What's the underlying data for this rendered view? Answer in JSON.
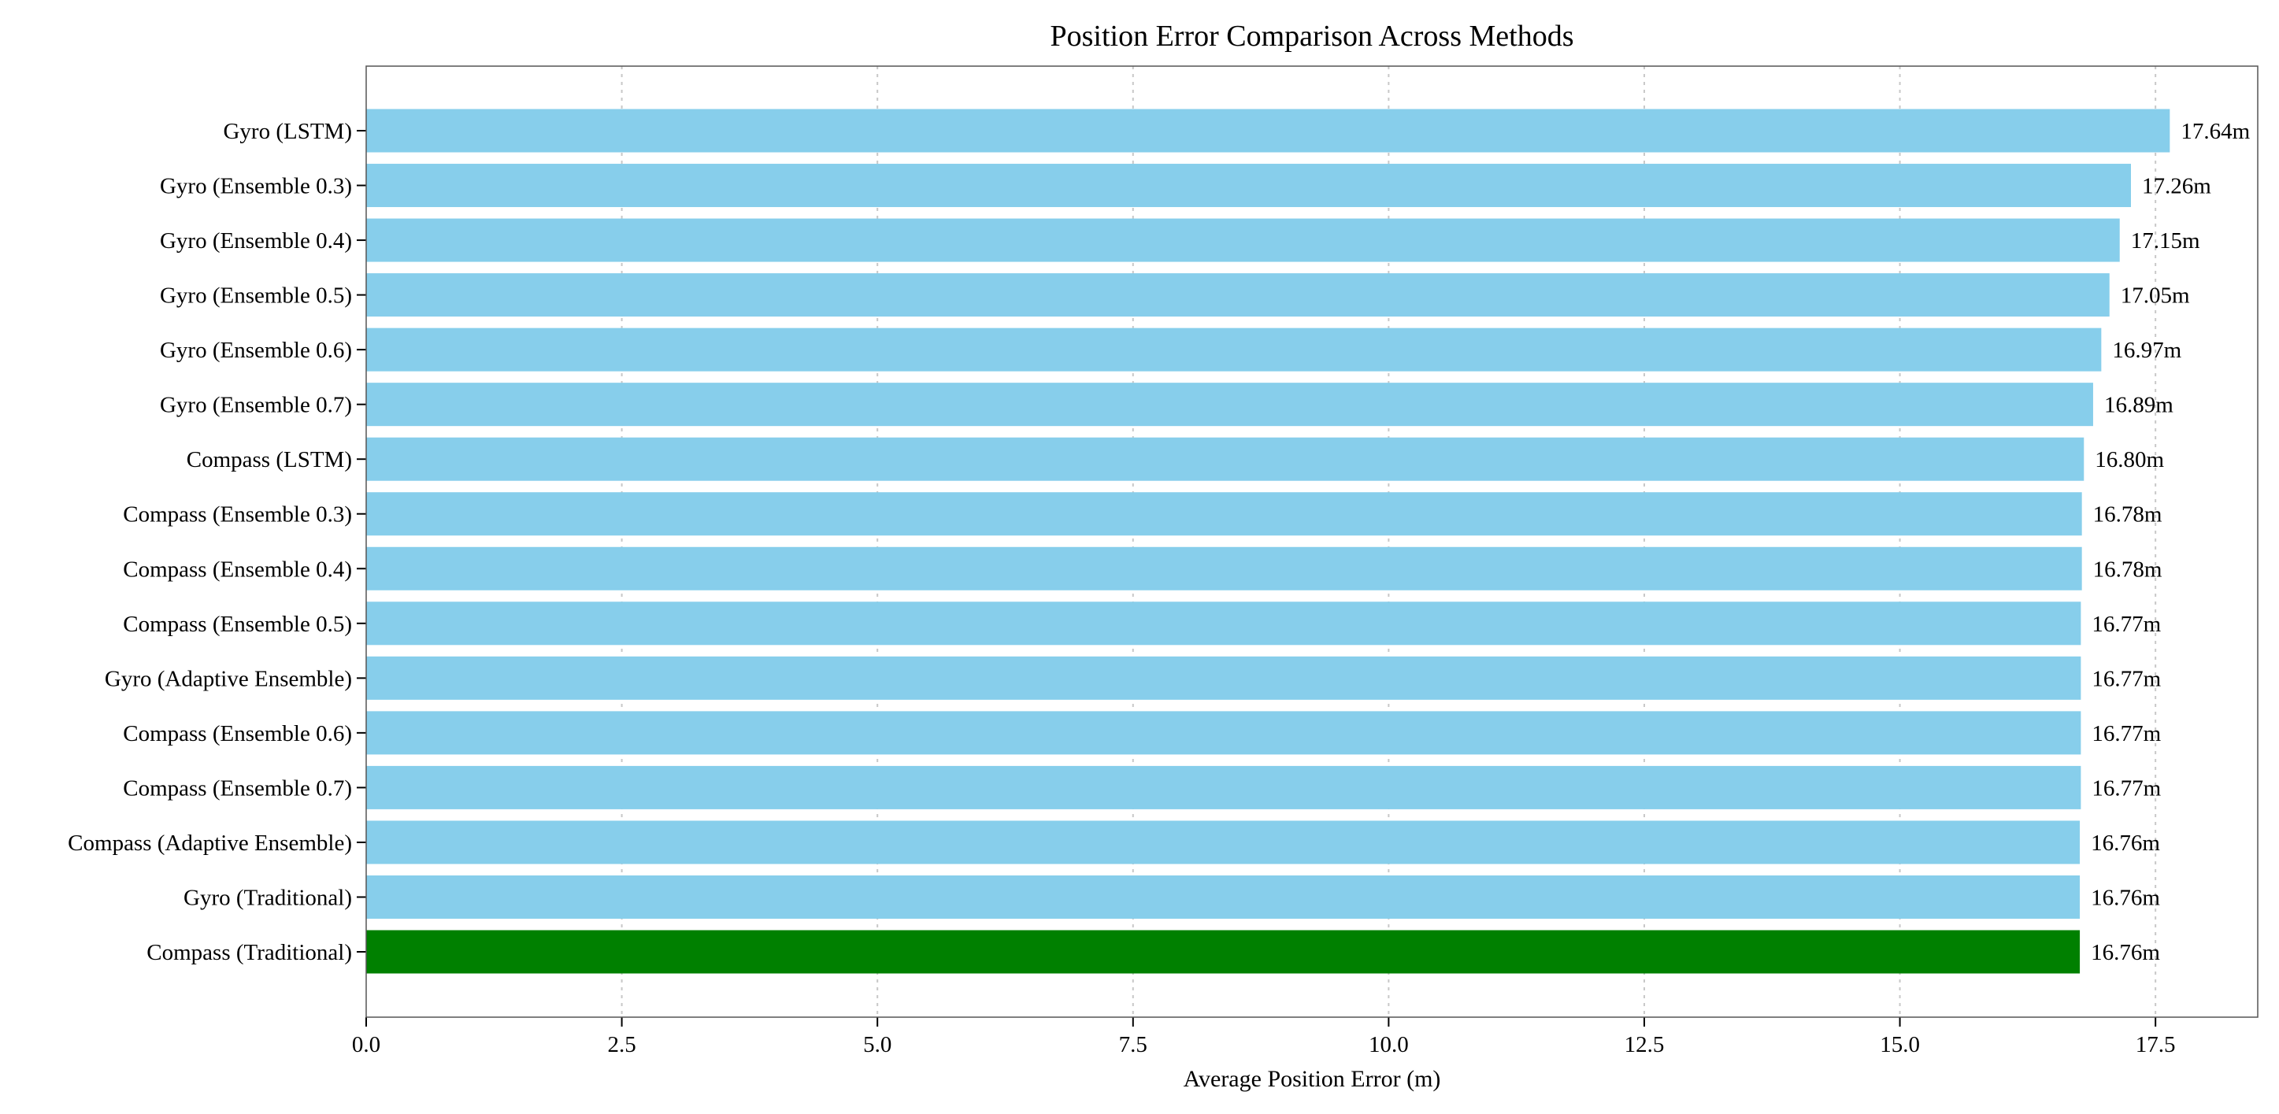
{
  "chart_data": {
    "type": "bar",
    "orientation": "horizontal",
    "title": "Position Error Comparison Across Methods",
    "xlabel": "Average Position Error (m)",
    "ylabel": "",
    "xlim": [
      0,
      18.5
    ],
    "xticks": [
      "0.0",
      "2.5",
      "5.0",
      "7.5",
      "10.0",
      "12.5",
      "15.0",
      "17.5"
    ],
    "xtick_values": [
      0,
      2.5,
      5,
      7.5,
      10,
      12.5,
      15,
      17.5
    ],
    "grid": "x-dotted",
    "categories": [
      "Gyro (LSTM)",
      "Gyro (Ensemble 0.3)",
      "Gyro (Ensemble 0.4)",
      "Gyro (Ensemble 0.5)",
      "Gyro (Ensemble 0.6)",
      "Gyro (Ensemble 0.7)",
      "Compass (LSTM)",
      "Compass (Ensemble 0.3)",
      "Compass (Ensemble 0.4)",
      "Compass (Ensemble 0.5)",
      "Gyro (Adaptive Ensemble)",
      "Compass (Ensemble 0.6)",
      "Compass (Ensemble 0.7)",
      "Compass (Adaptive Ensemble)",
      "Gyro (Traditional)",
      "Compass (Traditional)"
    ],
    "values": [
      17.64,
      17.26,
      17.15,
      17.05,
      16.97,
      16.89,
      16.8,
      16.78,
      16.78,
      16.77,
      16.77,
      16.77,
      16.77,
      16.76,
      16.76,
      16.76
    ],
    "value_labels": [
      "17.64m",
      "17.26m",
      "17.15m",
      "17.05m",
      "16.97m",
      "16.89m",
      "16.80m",
      "16.78m",
      "16.78m",
      "16.77m",
      "16.77m",
      "16.77m",
      "16.77m",
      "16.76m",
      "16.76m",
      "16.76m"
    ],
    "highlight_index": 15,
    "colors": {
      "bar": "#87ceeb",
      "highlight": "#008000"
    }
  }
}
